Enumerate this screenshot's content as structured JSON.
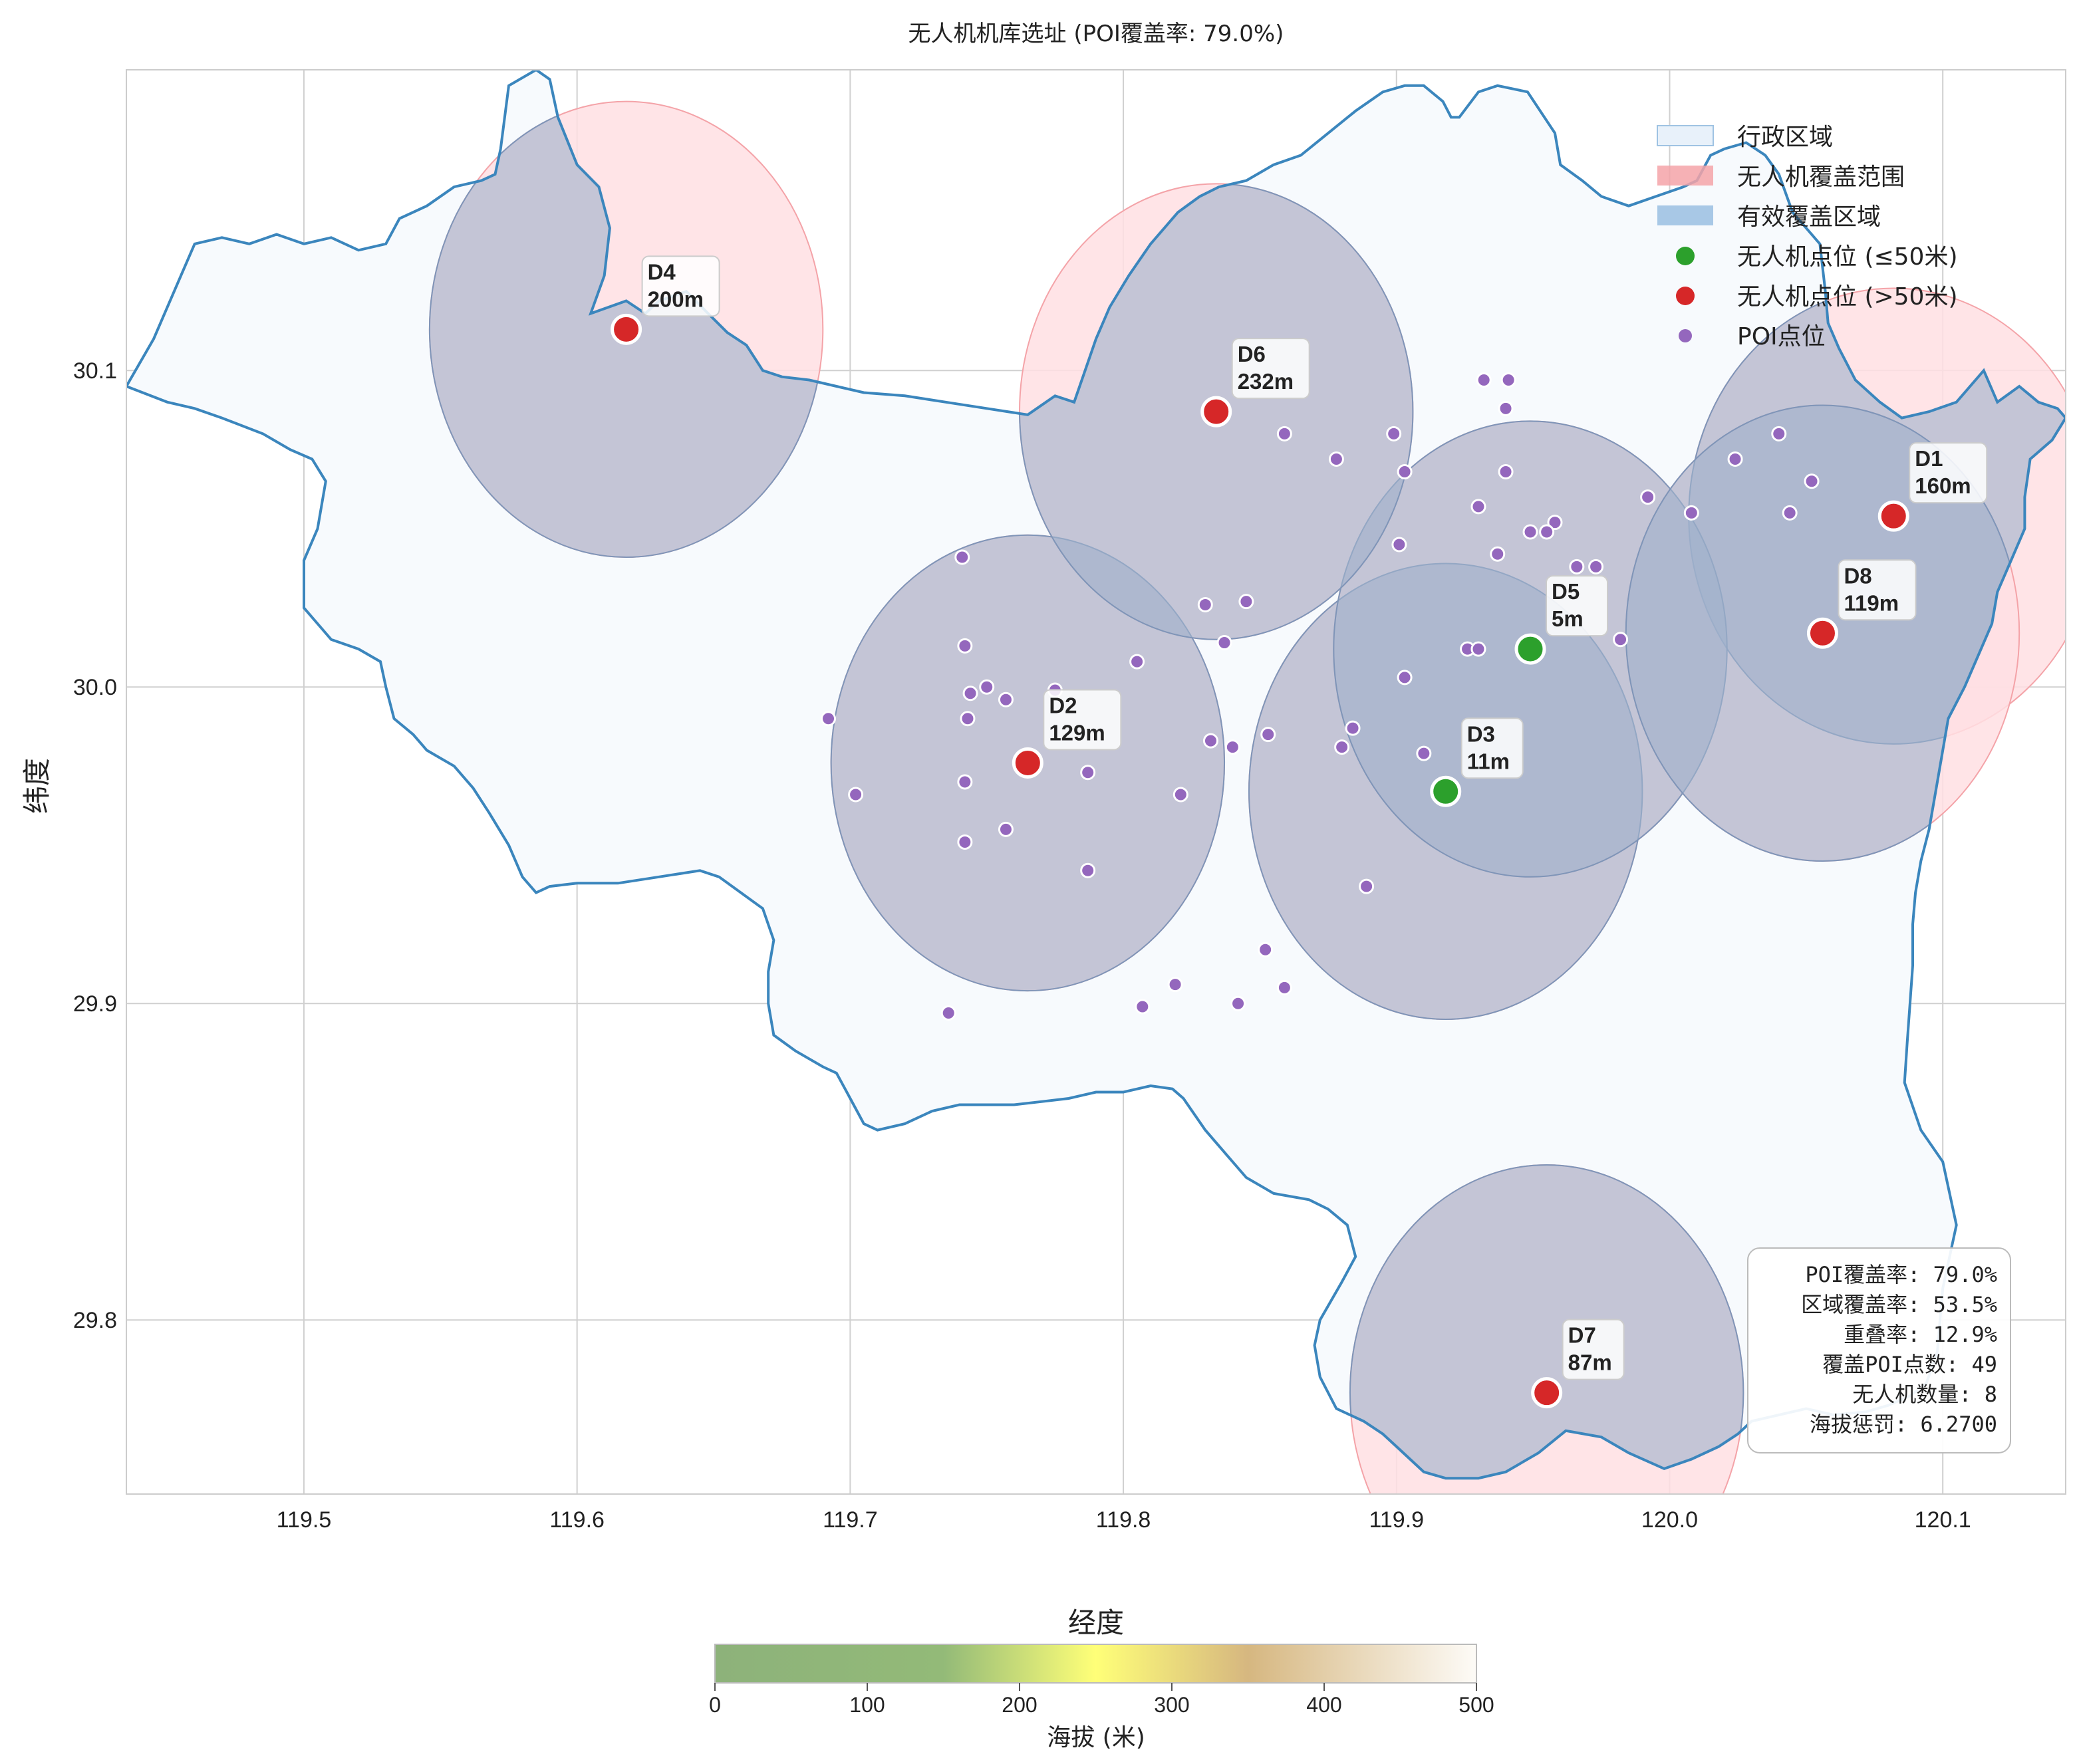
{
  "chart_data": {
    "type": "map",
    "title": "无人机机库选址 (POI覆盖率: 79.0%)",
    "xlabel": "经度",
    "ylabel": "纬度",
    "xlim": [
      119.435,
      120.145
    ],
    "ylim": [
      29.745,
      30.195
    ],
    "xticks": [
      119.5,
      119.6,
      119.7,
      119.8,
      119.9,
      120.0,
      120.1
    ],
    "yticks": [
      29.8,
      29.9,
      30.0,
      30.1
    ],
    "xtick_labels": [
      "119.5",
      "119.6",
      "119.7",
      "119.8",
      "119.9",
      "120.0",
      "120.1"
    ],
    "ytick_labels": [
      "29.8",
      "29.9",
      "30.0",
      "30.1"
    ],
    "grid": true,
    "legend_position": "top-right",
    "legend": [
      {
        "label": "行政区域",
        "kind": "region"
      },
      {
        "label": "无人机覆盖范围",
        "kind": "coverage"
      },
      {
        "label": "有效覆盖区域",
        "kind": "effective"
      },
      {
        "label": "无人机点位 (≤50米)",
        "kind": "drone-low"
      },
      {
        "label": "无人机点位 (>50米)",
        "kind": "drone-high"
      },
      {
        "label": "POI点位",
        "kind": "poi"
      }
    ],
    "colors": {
      "region_fill": "#f7fafd",
      "region_edge": "#3b86bd",
      "coverage_fill": "#ffdfe3",
      "coverage_edge": "#f4a3a8",
      "effective_fill": "#9fb1cc",
      "effective_edge": "#7f95b8",
      "drone_low": "#2ca02c",
      "drone_high": "#d62728",
      "poi": "#9467bd",
      "grid": "#d0d0d0"
    },
    "region_outline": [
      [
        119.435,
        30.095
      ],
      [
        119.445,
        30.11
      ],
      [
        119.455,
        30.13
      ],
      [
        119.46,
        30.14
      ],
      [
        119.47,
        30.142
      ],
      [
        119.48,
        30.14
      ],
      [
        119.49,
        30.143
      ],
      [
        119.5,
        30.14
      ],
      [
        119.51,
        30.142
      ],
      [
        119.52,
        30.138
      ],
      [
        119.53,
        30.14
      ],
      [
        119.535,
        30.148
      ],
      [
        119.545,
        30.152
      ],
      [
        119.555,
        30.158
      ],
      [
        119.565,
        30.16
      ],
      [
        119.57,
        30.162
      ],
      [
        119.572,
        30.17
      ],
      [
        119.575,
        30.19
      ],
      [
        119.585,
        30.195
      ],
      [
        119.59,
        30.192
      ],
      [
        119.593,
        30.18
      ],
      [
        119.6,
        30.165
      ],
      [
        119.608,
        30.158
      ],
      [
        119.612,
        30.145
      ],
      [
        119.61,
        30.13
      ],
      [
        119.605,
        30.118
      ],
      [
        119.618,
        30.122
      ],
      [
        119.625,
        30.118
      ],
      [
        119.63,
        30.122
      ],
      [
        119.64,
        30.125
      ],
      [
        119.648,
        30.118
      ],
      [
        119.655,
        30.112
      ],
      [
        119.662,
        30.108
      ],
      [
        119.668,
        30.1
      ],
      [
        119.675,
        30.098
      ],
      [
        119.685,
        30.097
      ],
      [
        119.695,
        30.095
      ],
      [
        119.705,
        30.093
      ],
      [
        119.72,
        30.092
      ],
      [
        119.735,
        30.09
      ],
      [
        119.75,
        30.088
      ],
      [
        119.765,
        30.086
      ],
      [
        119.775,
        30.092
      ],
      [
        119.782,
        30.09
      ],
      [
        119.786,
        30.1
      ],
      [
        119.79,
        30.11
      ],
      [
        119.795,
        30.12
      ],
      [
        119.802,
        30.13
      ],
      [
        119.81,
        30.14
      ],
      [
        119.82,
        30.15
      ],
      [
        119.828,
        30.155
      ],
      [
        119.835,
        30.158
      ],
      [
        119.845,
        30.16
      ],
      [
        119.855,
        30.165
      ],
      [
        119.865,
        30.168
      ],
      [
        119.875,
        30.175
      ],
      [
        119.885,
        30.182
      ],
      [
        119.895,
        30.188
      ],
      [
        119.903,
        30.19
      ],
      [
        119.91,
        30.19
      ],
      [
        119.917,
        30.185
      ],
      [
        119.92,
        30.18
      ],
      [
        119.923,
        30.18
      ],
      [
        119.93,
        30.188
      ],
      [
        119.937,
        30.19
      ],
      [
        119.948,
        30.188
      ],
      [
        119.958,
        30.175
      ],
      [
        119.96,
        30.165
      ],
      [
        119.968,
        30.16
      ],
      [
        119.975,
        30.155
      ],
      [
        119.985,
        30.152
      ],
      [
        119.995,
        30.155
      ],
      [
        120.005,
        30.158
      ],
      [
        120.01,
        30.16
      ],
      [
        120.015,
        30.168
      ],
      [
        120.02,
        30.17
      ],
      [
        120.028,
        30.172
      ],
      [
        120.035,
        30.168
      ],
      [
        120.04,
        30.162
      ],
      [
        120.045,
        30.15
      ],
      [
        120.05,
        30.145
      ],
      [
        120.055,
        30.14
      ],
      [
        120.057,
        30.125
      ],
      [
        120.058,
        30.115
      ],
      [
        120.062,
        30.107
      ],
      [
        120.068,
        30.097
      ],
      [
        120.077,
        30.09
      ],
      [
        120.085,
        30.085
      ],
      [
        120.095,
        30.087
      ],
      [
        120.105,
        30.09
      ],
      [
        120.115,
        30.1
      ],
      [
        120.12,
        30.09
      ],
      [
        120.128,
        30.095
      ],
      [
        120.135,
        30.09
      ],
      [
        120.142,
        30.088
      ],
      [
        120.145,
        30.085
      ],
      [
        120.14,
        30.078
      ],
      [
        120.132,
        30.072
      ],
      [
        120.13,
        30.06
      ],
      [
        120.13,
        30.05
      ],
      [
        120.125,
        30.04
      ],
      [
        120.12,
        30.03
      ],
      [
        120.118,
        30.02
      ],
      [
        120.113,
        30.01
      ],
      [
        120.108,
        30.0
      ],
      [
        120.102,
        29.99
      ],
      [
        120.098,
        29.97
      ],
      [
        120.095,
        29.955
      ],
      [
        120.092,
        29.945
      ],
      [
        120.09,
        29.935
      ],
      [
        120.089,
        29.925
      ],
      [
        120.089,
        29.912
      ],
      [
        120.088,
        29.9
      ],
      [
        120.087,
        29.888
      ],
      [
        120.086,
        29.875
      ],
      [
        120.092,
        29.86
      ],
      [
        120.1,
        29.85
      ],
      [
        120.105,
        29.83
      ],
      [
        120.1,
        29.81
      ],
      [
        120.098,
        29.79
      ],
      [
        120.094,
        29.78
      ],
      [
        120.088,
        29.776
      ],
      [
        120.08,
        29.773
      ],
      [
        120.072,
        29.771
      ],
      [
        120.06,
        29.77
      ],
      [
        120.05,
        29.772
      ],
      [
        120.04,
        29.77
      ],
      [
        120.03,
        29.768
      ],
      [
        120.025,
        29.764
      ],
      [
        120.018,
        29.76
      ],
      [
        120.008,
        29.756
      ],
      [
        119.998,
        29.753
      ],
      [
        119.985,
        29.758
      ],
      [
        119.975,
        29.763
      ],
      [
        119.962,
        29.765
      ],
      [
        119.952,
        29.758
      ],
      [
        119.94,
        29.752
      ],
      [
        119.93,
        29.75
      ],
      [
        119.918,
        29.75
      ],
      [
        119.91,
        29.752
      ],
      [
        119.905,
        29.756
      ],
      [
        119.9,
        29.76
      ],
      [
        119.895,
        29.764
      ],
      [
        119.888,
        29.768
      ],
      [
        119.878,
        29.772
      ],
      [
        119.872,
        29.782
      ],
      [
        119.87,
        29.792
      ],
      [
        119.872,
        29.8
      ],
      [
        119.88,
        29.812
      ],
      [
        119.885,
        29.82
      ],
      [
        119.882,
        29.83
      ],
      [
        119.875,
        29.835
      ],
      [
        119.868,
        29.838
      ],
      [
        119.855,
        29.84
      ],
      [
        119.845,
        29.845
      ],
      [
        119.838,
        29.852
      ],
      [
        119.83,
        29.86
      ],
      [
        119.822,
        29.87
      ],
      [
        119.818,
        29.873
      ],
      [
        119.81,
        29.874
      ],
      [
        119.8,
        29.872
      ],
      [
        119.79,
        29.872
      ],
      [
        119.78,
        29.87
      ],
      [
        119.77,
        29.869
      ],
      [
        119.76,
        29.868
      ],
      [
        119.75,
        29.868
      ],
      [
        119.74,
        29.868
      ],
      [
        119.73,
        29.866
      ],
      [
        119.72,
        29.862
      ],
      [
        119.71,
        29.86
      ],
      [
        119.705,
        29.862
      ],
      [
        119.7,
        29.87
      ],
      [
        119.695,
        29.878
      ],
      [
        119.69,
        29.88
      ],
      [
        119.68,
        29.885
      ],
      [
        119.672,
        29.89
      ],
      [
        119.67,
        29.9
      ],
      [
        119.67,
        29.91
      ],
      [
        119.672,
        29.92
      ],
      [
        119.668,
        29.93
      ],
      [
        119.66,
        29.935
      ],
      [
        119.652,
        29.94
      ],
      [
        119.645,
        29.942
      ],
      [
        119.63,
        29.94
      ],
      [
        119.615,
        29.938
      ],
      [
        119.6,
        29.938
      ],
      [
        119.59,
        29.937
      ],
      [
        119.585,
        29.935
      ],
      [
        119.58,
        29.94
      ],
      [
        119.575,
        29.95
      ],
      [
        119.568,
        29.96
      ],
      [
        119.562,
        29.968
      ],
      [
        119.555,
        29.975
      ],
      [
        119.545,
        29.98
      ],
      [
        119.54,
        29.985
      ],
      [
        119.533,
        29.99
      ],
      [
        119.53,
        30.0
      ],
      [
        119.528,
        30.008
      ],
      [
        119.52,
        30.012
      ],
      [
        119.51,
        30.015
      ],
      [
        119.505,
        30.02
      ],
      [
        119.5,
        30.025
      ],
      [
        119.5,
        30.04
      ],
      [
        119.505,
        30.05
      ],
      [
        119.508,
        30.065
      ],
      [
        119.503,
        30.072
      ],
      [
        119.495,
        30.075
      ],
      [
        119.485,
        30.08
      ],
      [
        119.47,
        30.085
      ],
      [
        119.46,
        30.088
      ],
      [
        119.45,
        30.09
      ],
      [
        119.435,
        30.095
      ]
    ],
    "coverage_circles": [
      {
        "id": "D1",
        "center": [
          120.082,
          30.054
        ],
        "rx": 0.075,
        "ry": 0.072
      },
      {
        "id": "D2",
        "center": [
          119.765,
          29.976
        ],
        "rx": 0.072,
        "ry": 0.072
      },
      {
        "id": "D3",
        "center": [
          119.918,
          29.967
        ],
        "rx": 0.072,
        "ry": 0.072
      },
      {
        "id": "D4",
        "center": [
          119.618,
          30.113
        ],
        "rx": 0.072,
        "ry": 0.072
      },
      {
        "id": "D5",
        "center": [
          119.949,
          30.012
        ],
        "rx": 0.072,
        "ry": 0.072
      },
      {
        "id": "D6",
        "center": [
          119.834,
          30.087
        ],
        "rx": 0.072,
        "ry": 0.072
      },
      {
        "id": "D7",
        "center": [
          119.955,
          29.777
        ],
        "rx": 0.072,
        "ry": 0.072
      },
      {
        "id": "D8",
        "center": [
          120.056,
          30.017
        ],
        "rx": 0.072,
        "ry": 0.072
      }
    ],
    "drones": [
      {
        "id": "D1",
        "label": "D1",
        "elev_label": "160m",
        "lon": 120.082,
        "lat": 30.054,
        "elevation": 160
      },
      {
        "id": "D2",
        "label": "D2",
        "elev_label": "129m",
        "lon": 119.765,
        "lat": 29.976,
        "elevation": 129
      },
      {
        "id": "D3",
        "label": "D3",
        "elev_label": "11m",
        "lon": 119.918,
        "lat": 29.967,
        "elevation": 11
      },
      {
        "id": "D4",
        "label": "D4",
        "elev_label": "200m",
        "lon": 119.618,
        "lat": 30.113,
        "elevation": 200
      },
      {
        "id": "D5",
        "label": "D5",
        "elev_label": "5m",
        "lon": 119.949,
        "lat": 30.012,
        "elevation": 5
      },
      {
        "id": "D6",
        "label": "D6",
        "elev_label": "232m",
        "lon": 119.834,
        "lat": 30.087,
        "elevation": 232
      },
      {
        "id": "D7",
        "label": "D7",
        "elev_label": "87m",
        "lon": 119.955,
        "lat": 29.777,
        "elevation": 87
      },
      {
        "id": "D8",
        "label": "D8",
        "elev_label": "119m",
        "lon": 120.056,
        "lat": 30.017,
        "elevation": 119
      }
    ],
    "poi": [
      [
        119.932,
        30.097
      ],
      [
        119.941,
        30.097
      ],
      [
        119.94,
        30.088
      ],
      [
        119.859,
        30.08
      ],
      [
        119.899,
        30.08
      ],
      [
        120.04,
        30.08
      ],
      [
        119.878,
        30.072
      ],
      [
        120.024,
        30.072
      ],
      [
        119.903,
        30.068
      ],
      [
        119.94,
        30.068
      ],
      [
        120.052,
        30.065
      ],
      [
        119.992,
        30.06
      ],
      [
        119.93,
        30.057
      ],
      [
        120.008,
        30.055
      ],
      [
        120.044,
        30.055
      ],
      [
        119.958,
        30.052
      ],
      [
        119.949,
        30.049
      ],
      [
        119.955,
        30.049
      ],
      [
        119.901,
        30.045
      ],
      [
        119.937,
        30.042
      ],
      [
        119.741,
        30.041
      ],
      [
        119.966,
        30.038
      ],
      [
        119.973,
        30.038
      ],
      [
        119.845,
        30.027
      ],
      [
        119.83,
        30.026
      ],
      [
        119.982,
        30.015
      ],
      [
        119.837,
        30.014
      ],
      [
        119.742,
        30.013
      ],
      [
        119.926,
        30.012
      ],
      [
        119.93,
        30.012
      ],
      [
        119.805,
        30.008
      ],
      [
        119.903,
        30.003
      ],
      [
        119.75,
        30.0
      ],
      [
        119.744,
        29.998
      ],
      [
        119.757,
        29.996
      ],
      [
        119.775,
        29.999
      ],
      [
        119.692,
        29.99
      ],
      [
        119.743,
        29.99
      ],
      [
        119.884,
        29.987
      ],
      [
        119.853,
        29.985
      ],
      [
        119.832,
        29.983
      ],
      [
        119.84,
        29.981
      ],
      [
        119.88,
        29.981
      ],
      [
        119.91,
        29.979
      ],
      [
        119.787,
        29.973
      ],
      [
        119.742,
        29.97
      ],
      [
        119.702,
        29.966
      ],
      [
        119.821,
        29.966
      ],
      [
        119.757,
        29.955
      ],
      [
        119.742,
        29.951
      ],
      [
        119.787,
        29.942
      ],
      [
        119.889,
        29.937
      ],
      [
        119.852,
        29.917
      ],
      [
        119.819,
        29.906
      ],
      [
        119.859,
        29.905
      ],
      [
        119.807,
        29.899
      ],
      [
        119.842,
        29.9
      ],
      [
        119.736,
        29.897
      ]
    ],
    "stats": [
      "POI覆盖率: 79.0%",
      "区域覆盖率: 53.5%",
      "重叠率: 12.9%",
      "覆盖POI点数: 49",
      "无人机数量: 8",
      "海拔惩罚: 6.2700"
    ],
    "colorbar": {
      "label": "海拔 (米)",
      "range": [
        0,
        500
      ],
      "ticks": [
        0,
        100,
        200,
        300,
        400,
        500
      ],
      "tick_labels": [
        "0",
        "100",
        "200",
        "300",
        "400",
        "500"
      ],
      "stops": [
        {
          "value": 0,
          "color": "#8db27a"
        },
        {
          "value": 150,
          "color": "#93ba78"
        },
        {
          "value": 250,
          "color": "#ffff78"
        },
        {
          "value": 350,
          "color": "#d6b780"
        },
        {
          "value": 500,
          "color": "#fdfbf7"
        }
      ]
    }
  }
}
